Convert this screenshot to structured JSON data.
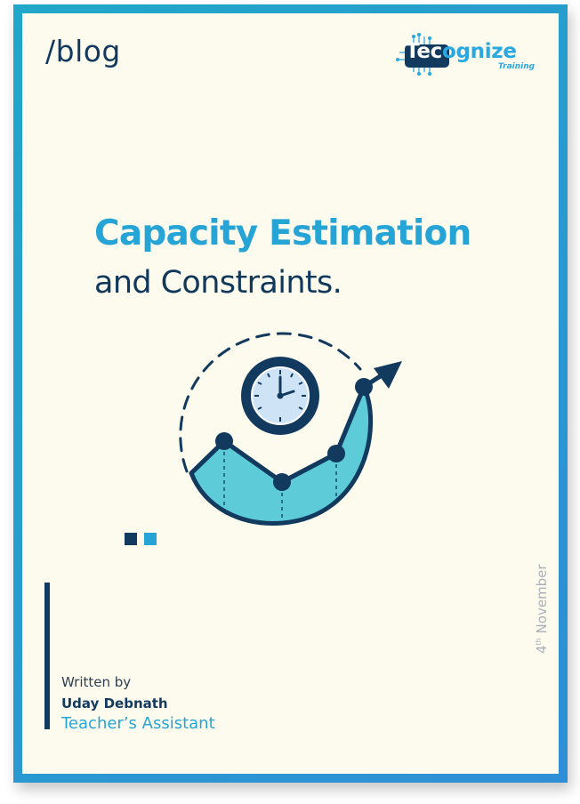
{
  "header": {
    "blog_label": "/blog",
    "logo": {
      "name": "Tecognize",
      "name_prefix": "Tec",
      "name_suffix": "ognize",
      "subtitle": "Training"
    }
  },
  "title": {
    "line1": "Capacity Estimation",
    "line2": "and Constraints."
  },
  "author": {
    "label": "Written by",
    "name": "Uday Debnath",
    "role": "Teacher’s Assistant"
  },
  "date": {
    "day": "4",
    "suffix": "th",
    "month": "November"
  },
  "colors": {
    "accent": "#27a4d6",
    "navy": "#123a5e",
    "background": "#fdfbee",
    "chart_fill": "#5ecbd8"
  },
  "icons": [
    "clock-icon",
    "growth-chart-icon",
    "arrow-up-icon"
  ]
}
